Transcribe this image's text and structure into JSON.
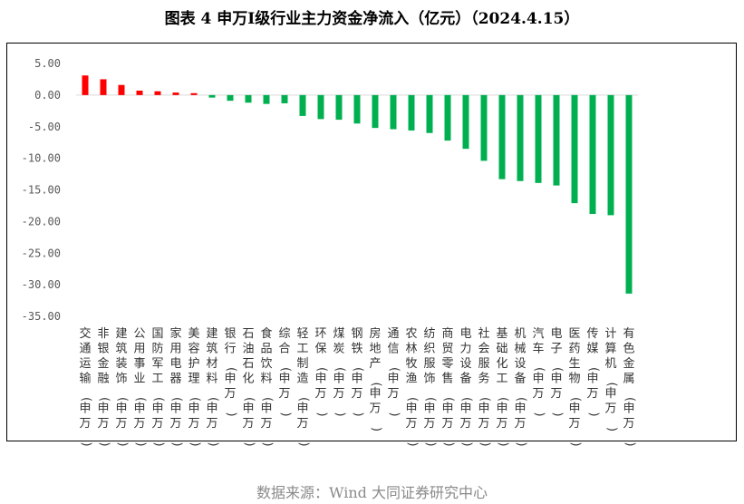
{
  "title": "图表 4   申万I级行业主力资金净流入（亿元）（2024.4.15）",
  "source": "数据来源：Wind 大同证券研究中心",
  "colors": {
    "positive": "#ff0000",
    "negative": "#00b050",
    "zero_line": "#d9d9d9"
  },
  "chart_data": {
    "type": "bar",
    "title": "申万I级行业主力资金净流入（亿元）（2024.4.15）",
    "ylabel": "",
    "xlabel": "",
    "ylim": [
      -35,
      5
    ],
    "yticks": [
      "5.00",
      "0.00",
      "-5.00",
      "-10.00",
      "-15.00",
      "-20.00",
      "-25.00",
      "-30.00",
      "-35.00"
    ],
    "grid": false,
    "categories": [
      "交通运输(申万)",
      "非银金融(申万)",
      "建筑装饰(申万)",
      "公用事业(申万)",
      "国防军工(申万)",
      "家用电器(申万)",
      "美容护理(申万)",
      "建筑材料(申万)",
      "银行(申万)",
      "石油石化(申万)",
      "食品饮料(申万)",
      "综合(申万)",
      "轻工制造(申万)",
      "环保(申万)",
      "煤炭(申万)",
      "钢铁(申万)",
      "房地产(申万)",
      "通信(申万)",
      "农林牧渔(申万)",
      "纺织服饰(申万)",
      "商贸零售(申万)",
      "电力设备(申万)",
      "社会服务(申万)",
      "基础化工(申万)",
      "机械设备(申万)",
      "汽车(申万)",
      "电子(申万)",
      "医药生物(申万)",
      "传媒(申万)",
      "计算机(申万)",
      "有色金属(申万)"
    ],
    "values": [
      3.1,
      2.5,
      1.6,
      0.7,
      0.6,
      0.4,
      0.3,
      -0.4,
      -0.9,
      -1.2,
      -1.4,
      -1.3,
      -3.3,
      -3.8,
      -3.9,
      -4.5,
      -5.2,
      -5.4,
      -5.6,
      -6.0,
      -7.2,
      -8.5,
      -10.4,
      -13.3,
      -13.6,
      -13.9,
      -14.3,
      -17.1,
      -18.8,
      -19.0,
      -31.4
    ]
  }
}
